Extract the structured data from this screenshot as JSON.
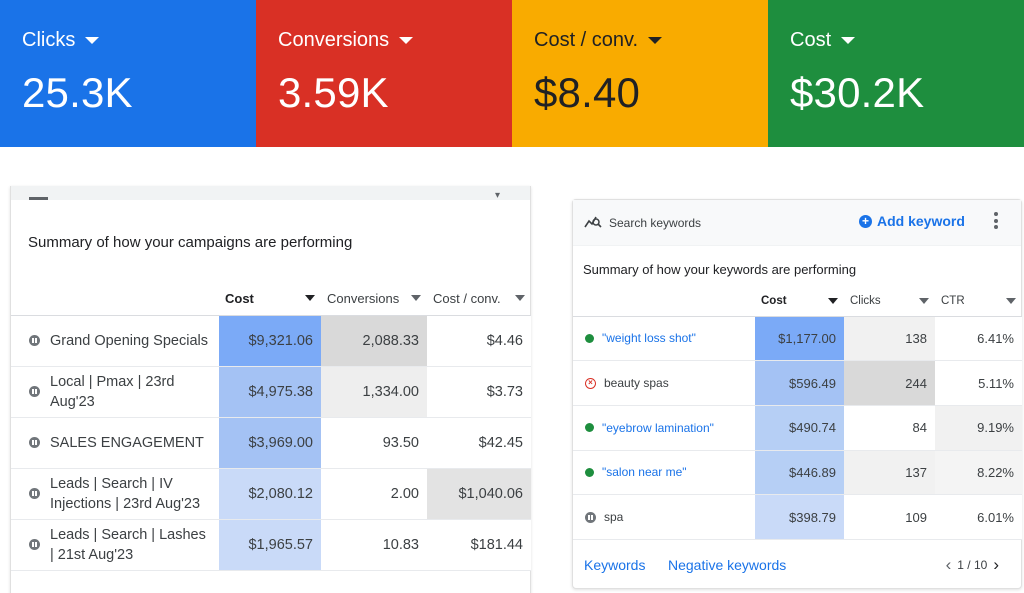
{
  "kpis": [
    {
      "label": "Clicks",
      "value": "25.3K",
      "color": "#1a73e8"
    },
    {
      "label": "Conversions",
      "value": "3.59K",
      "color": "#d93025"
    },
    {
      "label": "Cost / conv.",
      "value": "$8.40",
      "color": "#f9ab00"
    },
    {
      "label": "Cost",
      "value": "$30.2K",
      "color": "#1e8e3e"
    }
  ],
  "campaigns": {
    "title": "Summary of how your campaigns are performing",
    "headers": {
      "cost": "Cost",
      "conversions": "Conversions",
      "cost_per_conv": "Cost / conv."
    },
    "rows": [
      {
        "name": "Grand Opening Specials",
        "cost": "$9,321.06",
        "conversions": "2,088.33",
        "cost_per_conv": "$4.46",
        "shades": [
          "#7baaf7",
          "#d9d9d9",
          "#ffffff"
        ]
      },
      {
        "name": "Local | Pmax | 23rd Aug'23",
        "cost": "$4,975.38",
        "conversions": "1,334.00",
        "cost_per_conv": "$3.73",
        "shades": [
          "#a4c2f4",
          "#eeeeee",
          "#ffffff"
        ]
      },
      {
        "name": "SALES ENGAGEMENT",
        "cost": "$3,969.00",
        "conversions": "93.50",
        "cost_per_conv": "$42.45",
        "shades": [
          "#a4c2f4",
          "#ffffff",
          "#ffffff"
        ]
      },
      {
        "name": "Leads | Search | IV Injections | 23rd Aug'23",
        "cost": "$2,080.12",
        "conversions": "2.00",
        "cost_per_conv": "$1,040.06",
        "shades": [
          "#c9daf8",
          "#ffffff",
          "#e3e3e3"
        ]
      },
      {
        "name": "Leads | Search | Lashes | 21st Aug'23",
        "cost": "$1,965.57",
        "conversions": "10.83",
        "cost_per_conv": "$181.44",
        "shades": [
          "#c9daf8",
          "#ffffff",
          "#ffffff"
        ]
      }
    ]
  },
  "keywords": {
    "card_title": "Search keywords",
    "add_label": "Add keyword",
    "title": "Summary of how your keywords are performing",
    "headers": {
      "cost": "Cost",
      "clicks": "Clicks",
      "ctr": "CTR"
    },
    "rows": [
      {
        "keyword": "\"weight loss shot\"",
        "status": "enabled",
        "cost": "$1,177.00",
        "clicks": "138",
        "ctr": "6.41%",
        "shades": [
          "#7baaf7",
          "#f1f1f1",
          "#ffffff"
        ]
      },
      {
        "keyword": "beauty spas",
        "status": "removed",
        "cost": "$596.49",
        "clicks": "244",
        "ctr": "5.11%",
        "shades": [
          "#a4c2f4",
          "#d9d9d9",
          "#ffffff"
        ]
      },
      {
        "keyword": "\"eyebrow lamination\"",
        "status": "enabled",
        "cost": "$490.74",
        "clicks": "84",
        "ctr": "9.19%",
        "shades": [
          "#b6cff5",
          "#ffffff",
          "#f1f1f1"
        ]
      },
      {
        "keyword": "\"salon near me\"",
        "status": "enabled",
        "cost": "$446.89",
        "clicks": "137",
        "ctr": "8.22%",
        "shades": [
          "#b6cff5",
          "#f1f1f1",
          "#f4f4f4"
        ]
      },
      {
        "keyword": "spa",
        "status": "paused",
        "cost": "$398.79",
        "clicks": "109",
        "ctr": "6.01%",
        "shades": [
          "#c9daf8",
          "#ffffff",
          "#ffffff"
        ]
      }
    ],
    "footer": {
      "keywords_link": "Keywords",
      "negative_link": "Negative keywords",
      "page": "1 / 10"
    }
  }
}
